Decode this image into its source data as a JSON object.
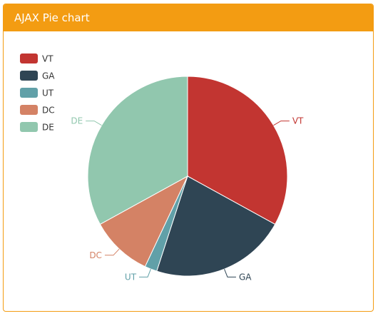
{
  "panel": {
    "title": "AJAX Pie chart",
    "accent_color": "#f39c12"
  },
  "chart_data": {
    "type": "pie",
    "legend_position": "top-left",
    "categories": [
      "VT",
      "GA",
      "UT",
      "DC",
      "DE"
    ],
    "values": [
      33,
      22,
      2,
      10,
      33
    ],
    "colors": [
      "#c23531",
      "#2f4554",
      "#61a0a8",
      "#d48265",
      "#91c7ae"
    ],
    "start_angle": 90,
    "clockwise": true
  }
}
